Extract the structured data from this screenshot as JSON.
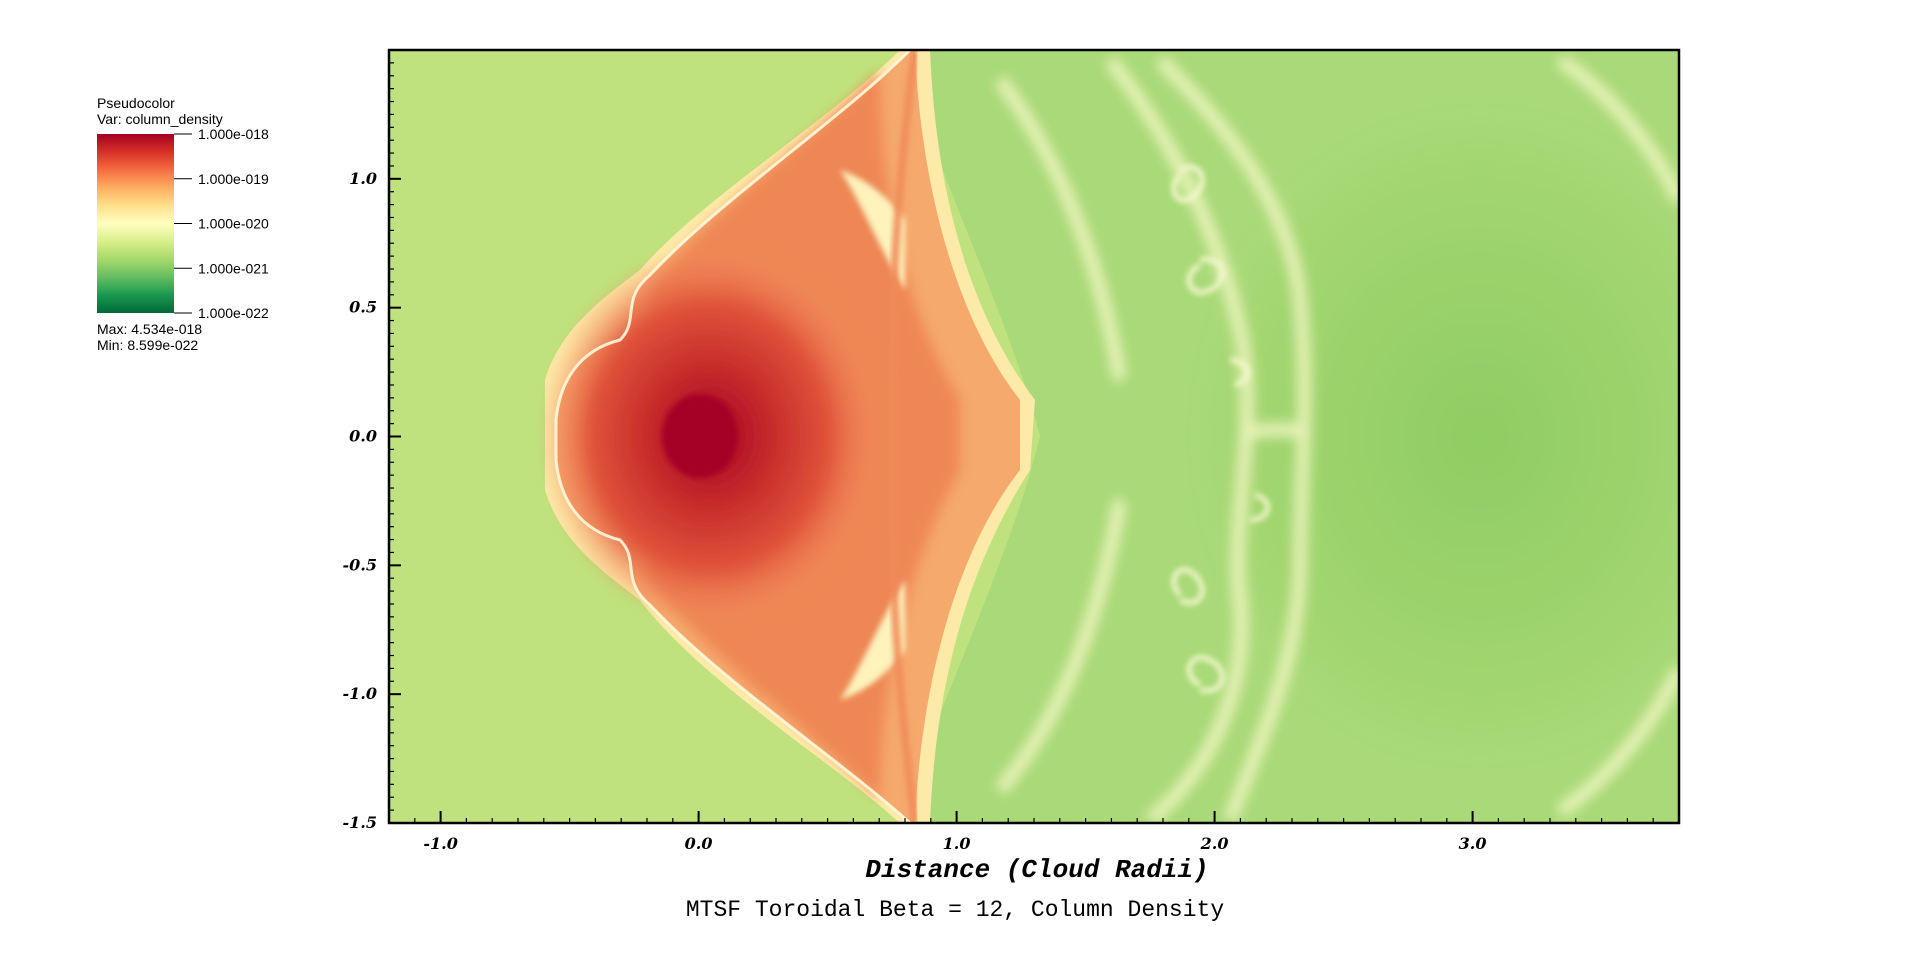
{
  "legend": {
    "plot_type": "Pseudocolor",
    "variable": "Var: column_density",
    "max": "Max:  4.534e-018",
    "min": "Min:  8.599e-022",
    "tick_labels": [
      "1.000e-018",
      "1.000e-019",
      "1.000e-020",
      "1.000e-021",
      "1.000e-022"
    ],
    "colors": [
      "#a50026",
      "#d73027",
      "#f46d43",
      "#fdae61",
      "#fee08b",
      "#ffffbf",
      "#d9ef8b",
      "#a6d96a",
      "#66bd63",
      "#1a9850",
      "#006837"
    ]
  },
  "chart_data": {
    "type": "heatmap",
    "title": "MTSF Toroidal Beta = 12, Column Density",
    "xlabel": "Distance (Cloud Radii)",
    "ylabel": "",
    "xlim": [
      -1.2,
      3.8
    ],
    "ylim": [
      -1.5,
      1.5
    ],
    "x_ticks": [
      -1.0,
      0.0,
      1.0,
      2.0,
      3.0
    ],
    "x_tick_labels": [
      "-1.0",
      "0.0",
      "1.0",
      "2.0",
      "3.0"
    ],
    "y_ticks": [
      1.0,
      0.5,
      0.0,
      -0.5,
      -1.0,
      -1.5
    ],
    "y_tick_labels": [
      "1.0",
      "0.5",
      "0.0",
      "-0.5",
      "-1.0",
      "-1.5"
    ],
    "variable": "column_density",
    "color_scale": "log",
    "value_range": [
      1e-22,
      1e-18
    ],
    "data_max": 4.534e-18,
    "data_min": 8.599e-22,
    "grid": false
  }
}
